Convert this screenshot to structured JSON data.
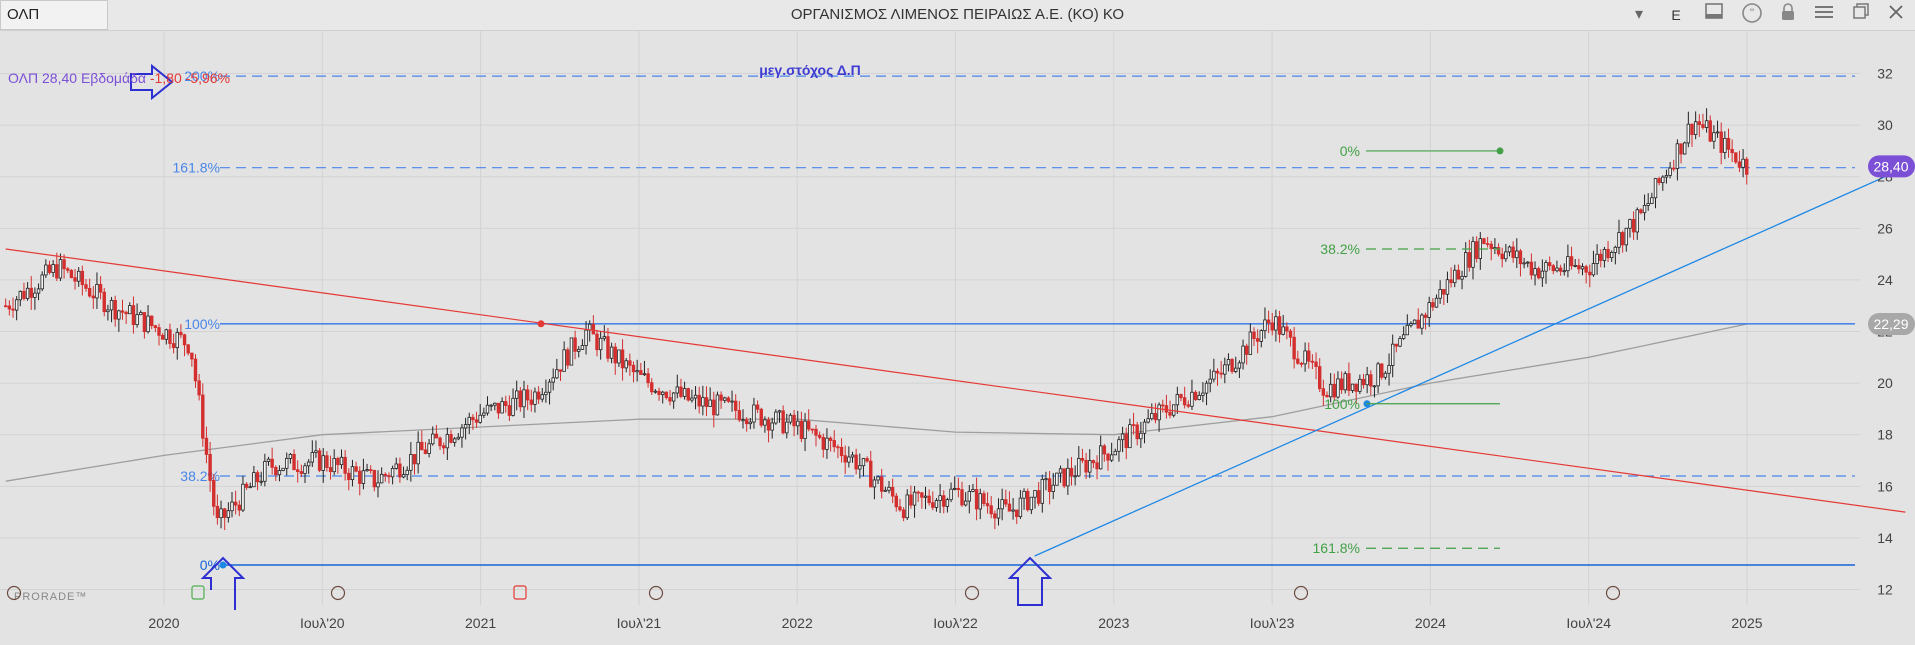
{
  "window": {
    "symbol": "ΟΛΠ",
    "title": "ΟΡΓΑΝΙΣΜΟΣ ΛΙΜΕΝΟΣ ΠΕΙΡΑΙΩΣ Α.Ε. (ΚΟ) ΚΟ",
    "currency_label": "E",
    "icons": [
      "chevron-down-icon",
      "layout-icon",
      "quote-icon",
      "lock-icon",
      "menu-icon",
      "restore-icon",
      "close-icon"
    ]
  },
  "info": {
    "symbol": "ΟΛΠ",
    "price": "28,40",
    "period": "Εβδομάδα",
    "change": "-1,80",
    "change_pct": "-5,96%"
  },
  "watermark": "PRORADE™",
  "chart_data": {
    "type": "candlestick",
    "period": "weekly",
    "x_ticks": [
      "2020",
      "Ιουλ'20",
      "2021",
      "Ιουλ'21",
      "2022",
      "Ιουλ'22",
      "2023",
      "Ιουλ'23",
      "2024",
      "Ιουλ'24",
      "2025"
    ],
    "y_ticks": [
      12,
      14,
      16,
      18,
      20,
      22,
      24,
      26,
      28,
      30,
      32
    ],
    "ylim": [
      11.4,
      33.3
    ],
    "last_price_label": "28,40",
    "ma_label": "22,29",
    "close_series": {
      "dates": [
        "2019-07",
        "2019-09",
        "2019-11",
        "2020-01",
        "2020-02",
        "2020-03",
        "2020-05",
        "2020-07",
        "2020-09",
        "2020-11",
        "2021-01",
        "2021-03",
        "2021-05",
        "2021-07",
        "2021-09",
        "2021-11",
        "2022-01",
        "2022-03",
        "2022-05",
        "2022-07",
        "2022-09",
        "2022-11",
        "2023-01",
        "2023-03",
        "2023-05",
        "2023-07",
        "2023-09",
        "2023-11",
        "2024-01",
        "2024-03",
        "2024-05",
        "2024-07",
        "2024-09",
        "2024-11",
        "2025-01"
      ],
      "values": [
        23.0,
        24.5,
        23.0,
        22.0,
        21.5,
        14.5,
        16.8,
        17.0,
        16.2,
        17.5,
        18.8,
        19.5,
        22.0,
        20.2,
        19.3,
        18.9,
        18.3,
        17.2,
        15.2,
        15.8,
        15.0,
        16.3,
        17.5,
        19.0,
        20.3,
        22.5,
        19.8,
        20.3,
        23.0,
        25.6,
        24.4,
        24.5,
        26.5,
        30.2,
        28.4
      ]
    },
    "moving_average": {
      "dates": [
        "2019-07",
        "2020-01",
        "2020-07",
        "2021-01",
        "2021-07",
        "2022-01",
        "2022-07",
        "2023-01",
        "2023-07",
        "2024-01",
        "2024-07",
        "2025-01"
      ],
      "values": [
        16.2,
        17.2,
        18.0,
        18.3,
        18.6,
        18.6,
        18.1,
        18.0,
        18.7,
        20.0,
        21.0,
        22.29
      ]
    },
    "horizontal_lines": [
      {
        "label": "200%",
        "value": 31.9,
        "style": "dashed",
        "color": "#4a86e8"
      },
      {
        "label": "161.8%",
        "value": 28.35,
        "style": "dashed",
        "color": "#4a86e8"
      },
      {
        "label": "100%",
        "value": 22.3,
        "style": "solid",
        "color": "#4a86e8"
      },
      {
        "label": "38.2%",
        "value": 16.4,
        "style": "dashed",
        "color": "#4a86e8"
      },
      {
        "label": "0%",
        "value": 12.95,
        "style": "solid",
        "color": "#1565d8"
      }
    ],
    "fib_green": [
      {
        "label": "0%",
        "value": 29.0
      },
      {
        "label": "38.2%",
        "value": 25.2
      },
      {
        "label": "100%",
        "value": 19.2
      },
      {
        "label": "161.8%",
        "value": 13.6
      }
    ],
    "annotation": "μεγ.στόχος Δ.Π",
    "red_trendline": {
      "from": {
        "date": "2019-07",
        "value": 25.2
      },
      "to": {
        "date": "2025-07",
        "value": 15.0
      }
    },
    "blue_trendline": {
      "from": {
        "date": "2022-10",
        "value": 13.3
      },
      "to": {
        "date": "2025-07",
        "value": 28.35
      }
    },
    "colors": {
      "up": "#222222",
      "down": "#d32f2f",
      "ma": "#9e9e9e",
      "fib_blue": "#4a86e8",
      "fib_green": "#43a047",
      "trend_red": "#e53935",
      "trend_blue": "#1e88e5",
      "annotation": "#3d3bd1",
      "price_tag": "#7b4fd6"
    }
  }
}
